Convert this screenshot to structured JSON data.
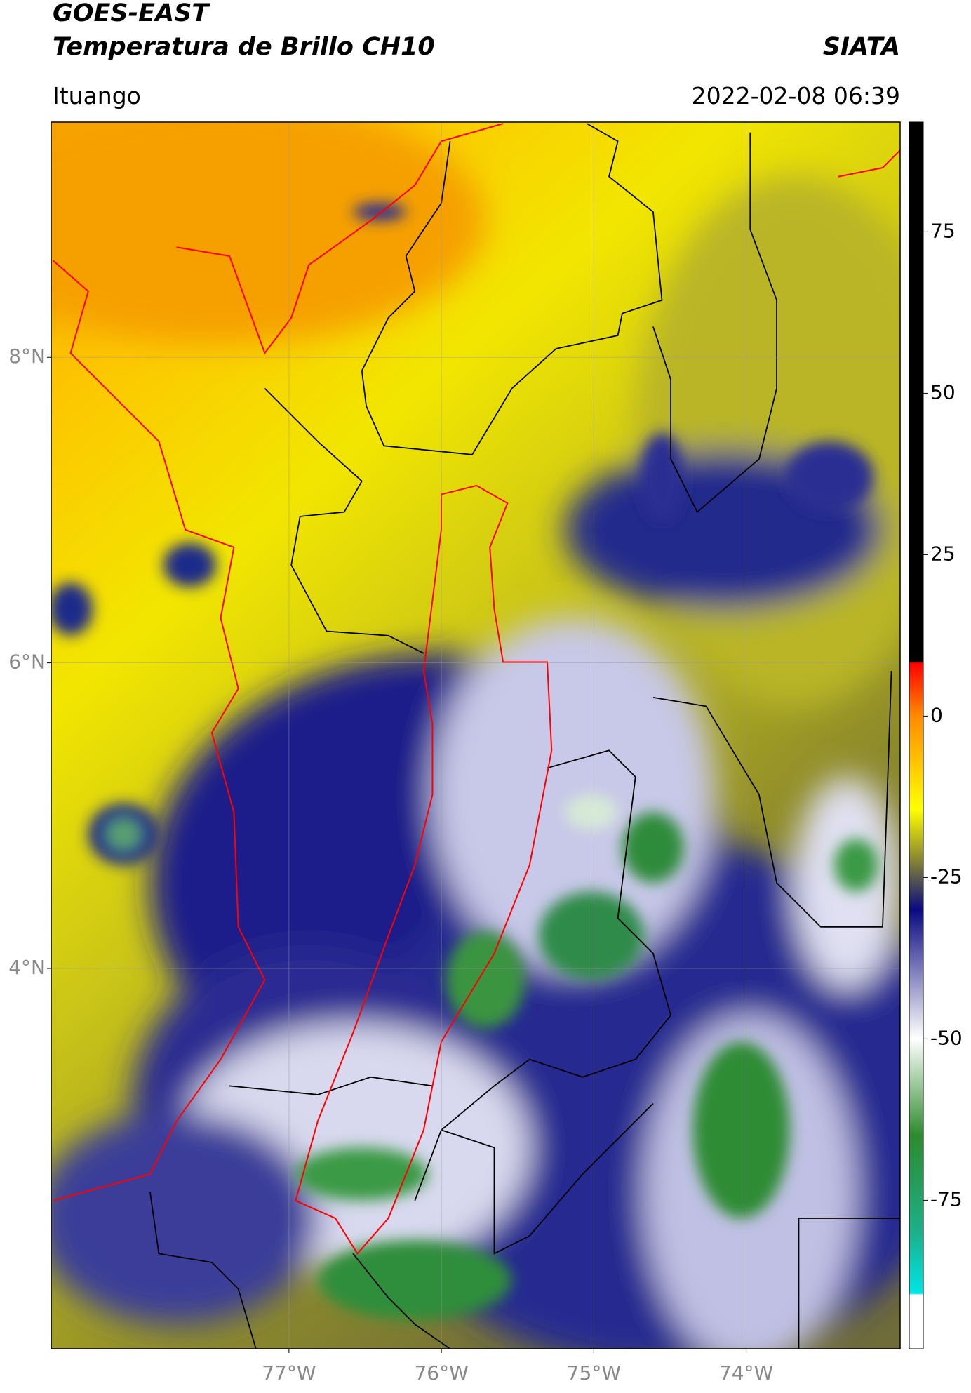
{
  "header": {
    "title": "GOES-EAST",
    "subtitle": "Temperatura de Brillo CH10",
    "source": "SIATA",
    "location": "Ituango",
    "datetime": "2022-02-08 06:39"
  },
  "map": {
    "xlim": [
      -78.56,
      -72.99
    ],
    "ylim": [
      1.51,
      9.54
    ],
    "xticks": [
      {
        "value": -77,
        "label": "77°W"
      },
      {
        "value": -76,
        "label": "76°W"
      },
      {
        "value": -75,
        "label": "75°W"
      },
      {
        "value": -74,
        "label": "74°W"
      }
    ],
    "yticks": [
      {
        "value": 4,
        "label": "4°N"
      },
      {
        "value": 6,
        "label": "6°N"
      },
      {
        "value": 8,
        "label": "8°N"
      }
    ],
    "grid": true
  },
  "colorbar": {
    "ylim": [
      -98,
      92
    ],
    "yticks": [
      -75,
      -50,
      -25,
      0,
      25,
      50,
      75
    ]
  }
}
